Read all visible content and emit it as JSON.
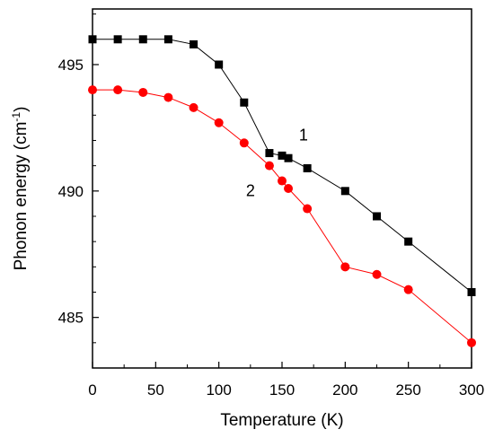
{
  "chart_data": {
    "type": "line",
    "xlabel": "Temperature (K)",
    "ylabel": {
      "main": "Phonon energy (cm",
      "sup": "-1",
      "close": ")"
    },
    "xlim": [
      0,
      300
    ],
    "ylim": [
      483,
      497.2
    ],
    "x_ticks": [
      0,
      50,
      100,
      150,
      200,
      250,
      300
    ],
    "y_ticks": [
      485,
      490,
      495
    ],
    "grid": false,
    "series": [
      {
        "name": "1",
        "color": "#000000",
        "marker": "square",
        "x": [
          0,
          20,
          40,
          60,
          80,
          100,
          120,
          140,
          150,
          155,
          170,
          200,
          225,
          250,
          300
        ],
        "y": [
          496.0,
          496.0,
          496.0,
          496.0,
          495.8,
          495.0,
          493.5,
          491.5,
          491.4,
          491.3,
          490.9,
          490.0,
          489.0,
          488.0,
          486.0
        ]
      },
      {
        "name": "2",
        "color": "#ff0000",
        "marker": "circle",
        "x": [
          0,
          20,
          40,
          60,
          80,
          100,
          120,
          140,
          150,
          155,
          170,
          200,
          225,
          250,
          300
        ],
        "y": [
          494.0,
          494.0,
          493.9,
          493.7,
          493.3,
          492.7,
          491.9,
          491.0,
          490.4,
          490.1,
          489.3,
          487.0,
          486.7,
          486.1,
          484.0
        ]
      }
    ],
    "annotations": [
      {
        "text": "1",
        "x": 167,
        "y": 492.0
      },
      {
        "text": "2",
        "x": 125,
        "y": 489.8
      }
    ]
  }
}
